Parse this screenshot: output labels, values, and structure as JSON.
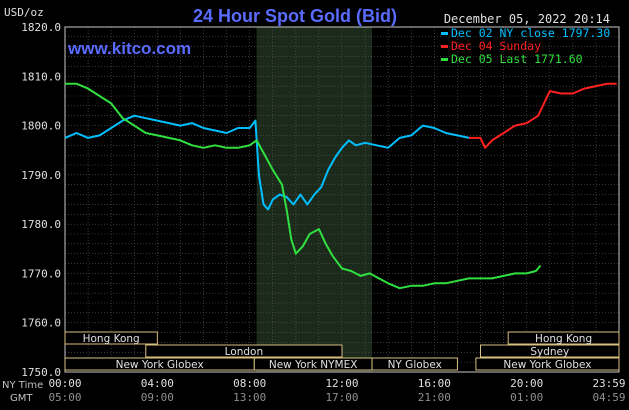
{
  "chart_data": {
    "type": "line",
    "title": "24 Hour Spot Gold (Bid)",
    "watermark": "www.kitco.com",
    "ylabel": "USD/oz",
    "date": "December 05, 2022 20:14",
    "ylim": [
      1750,
      1820
    ],
    "yticks": [
      "1820.0",
      "1810.0",
      "1800.0",
      "1790.0",
      "1780.0",
      "1770.0",
      "1760.0",
      "1750.0"
    ],
    "x_range_hours": [
      0,
      24
    ],
    "x_tick_hours": [
      0,
      4,
      8,
      12,
      16,
      20,
      24
    ],
    "x_row_labels": [
      "NY Time",
      "GMT"
    ],
    "x_ticks_ny": [
      "00:00",
      "04:00",
      "08:00",
      "12:00",
      "16:00",
      "20:00",
      "23:59"
    ],
    "x_ticks_gmt": [
      "05:00",
      "09:00",
      "13:00",
      "17:00",
      "21:00",
      "01:00",
      "04:59"
    ],
    "shaded_region_hours": [
      8.3,
      13.3
    ],
    "grid": true,
    "legend_position": "top-right",
    "series": [
      {
        "name": "Dec 02 NY close 1797.30",
        "color": "#00bfff",
        "x": [
          0,
          0.5,
          1,
          1.5,
          2,
          2.5,
          3,
          3.5,
          4,
          4.5,
          5,
          5.5,
          6,
          6.5,
          7,
          7.5,
          8,
          8.25,
          8.4,
          8.6,
          8.8,
          9.0,
          9.3,
          9.6,
          9.9,
          10.2,
          10.5,
          10.8,
          11.1,
          11.4,
          11.7,
          12.0,
          12.3,
          12.6,
          13.0,
          13.5,
          14,
          14.5,
          15,
          15.5,
          16,
          16.5,
          17,
          17.5
        ],
        "values": [
          1797.5,
          1798.5,
          1797.5,
          1798,
          1799.5,
          1801,
          1802,
          1801.5,
          1801,
          1800.5,
          1800,
          1800.5,
          1799.5,
          1799,
          1798.5,
          1799.5,
          1799.5,
          1801,
          1790,
          1784,
          1783,
          1785,
          1786,
          1785.5,
          1784,
          1786,
          1784,
          1786,
          1787.5,
          1791,
          1793.5,
          1795.5,
          1797,
          1796,
          1796.5,
          1796,
          1795.5,
          1797.5,
          1798,
          1800,
          1799.5,
          1798.5,
          1798,
          1797.5
        ]
      },
      {
        "name": "Dec 04 Sunday",
        "color": "#ff2020",
        "x": [
          17.5,
          18.0,
          18.2,
          18.5,
          19.0,
          19.5,
          20.0,
          20.5,
          21.0,
          21.5,
          22.0,
          22.5,
          23.0,
          23.5,
          23.9
        ],
        "values": [
          1797.5,
          1797.5,
          1795.5,
          1797,
          1798.5,
          1800,
          1800.5,
          1802,
          1807,
          1806.5,
          1806.5,
          1807.5,
          1808,
          1808.5,
          1808.5
        ]
      },
      {
        "name": "Dec 05 Last 1771.60",
        "color": "#30e040",
        "x": [
          0,
          0.5,
          1,
          1.5,
          2,
          2.5,
          3,
          3.5,
          4,
          4.5,
          5,
          5.5,
          6,
          6.5,
          7,
          7.5,
          8,
          8.3,
          8.6,
          9.0,
          9.4,
          9.6,
          9.8,
          10.0,
          10.3,
          10.6,
          11.0,
          11.3,
          11.6,
          12.0,
          12.4,
          12.8,
          13.2,
          13.6,
          14,
          14.5,
          15,
          15.5,
          16,
          16.5,
          17,
          17.5,
          18,
          18.5,
          19,
          19.5,
          20,
          20.4,
          20.6
        ],
        "values": [
          1808.5,
          1808.5,
          1807.5,
          1806,
          1804.5,
          1801.5,
          1800,
          1798.5,
          1798,
          1797.5,
          1797,
          1796,
          1795.5,
          1796,
          1795.5,
          1795.5,
          1796,
          1797,
          1794.5,
          1791,
          1788,
          1783,
          1777,
          1774,
          1775.5,
          1778,
          1779,
          1776,
          1773.5,
          1771,
          1770.5,
          1769.5,
          1770,
          1769,
          1768,
          1767,
          1767.5,
          1767.5,
          1768,
          1768,
          1768.5,
          1769,
          1769,
          1769,
          1769.5,
          1770,
          1770,
          1770.5,
          1771.6
        ]
      }
    ],
    "market_sessions": [
      {
        "name": "Hong Kong",
        "start": 0,
        "end": 4,
        "row": 0
      },
      {
        "name": "Hong Kong",
        "start": 19.2,
        "end": 24,
        "row": 0
      },
      {
        "name": "London",
        "start": 3.5,
        "end": 12.0,
        "row": 1
      },
      {
        "name": "Sydney",
        "start": 18.0,
        "end": 24,
        "row": 1
      },
      {
        "name": "New York Globex",
        "start": 0,
        "end": 8.2,
        "row": 2
      },
      {
        "name": "New York NYMEX",
        "start": 8.2,
        "end": 13.3,
        "row": 2
      },
      {
        "name": "NY Globex",
        "start": 13.3,
        "end": 17.0,
        "row": 2
      },
      {
        "name": "New York Globex",
        "start": 17.8,
        "end": 24,
        "row": 2
      }
    ]
  }
}
